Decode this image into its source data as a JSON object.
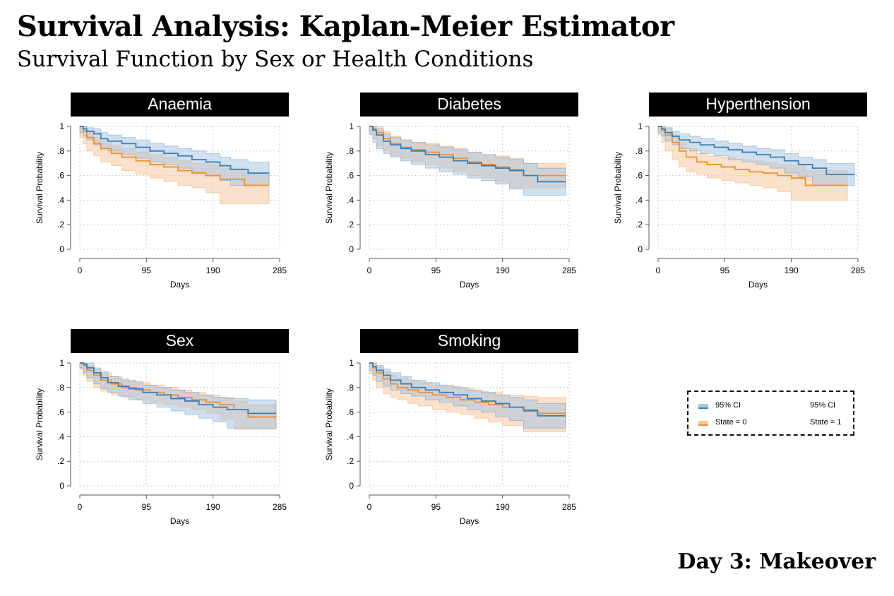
{
  "header": {
    "title": "Survival Analysis: Kaplan-Meier Estimator",
    "subtitle": "Survival Function by Sex or Health Conditions"
  },
  "footer": {
    "label": "Day 3: Makeover"
  },
  "colors": {
    "state0": "#f28e2b",
    "state1": "#3a7fb5",
    "ci_state0": "#f5c9a0",
    "ci_state1": "#a9c7e2",
    "panel_header_bg": "#000000",
    "panel_header_text": "#ffffff"
  },
  "legend": {
    "ci_label_left": "95% CI",
    "ci_label_right": "95% CI",
    "state0_label": "State = 0",
    "state1_label": "State = 1"
  },
  "chart_data": [
    {
      "type": "line",
      "title": "Anaemia",
      "xlabel": "Days",
      "ylabel": "Survival Probability",
      "xlim": [
        0,
        285
      ],
      "ylim": [
        0,
        1
      ],
      "xticks": [
        0,
        95,
        190,
        285
      ],
      "yticks": [
        0,
        0.2,
        0.4,
        0.6,
        0.8,
        1
      ],
      "ytick_labels": [
        "0",
        ".2",
        ".4",
        ".6",
        ".8",
        "1"
      ],
      "grid": true,
      "series": [
        {
          "state": 1,
          "x": [
            0,
            5,
            10,
            20,
            30,
            40,
            60,
            80,
            100,
            120,
            140,
            160,
            180,
            200,
            215,
            240,
            270
          ],
          "y": [
            1,
            0.98,
            0.96,
            0.94,
            0.9,
            0.88,
            0.86,
            0.83,
            0.8,
            0.78,
            0.76,
            0.73,
            0.71,
            0.68,
            0.65,
            0.62,
            0.62
          ],
          "lower": [
            1,
            0.95,
            0.92,
            0.89,
            0.85,
            0.82,
            0.8,
            0.77,
            0.74,
            0.71,
            0.69,
            0.66,
            0.63,
            0.6,
            0.56,
            0.52,
            0.52
          ],
          "upper": [
            1,
            1,
            0.99,
            0.98,
            0.95,
            0.93,
            0.91,
            0.89,
            0.86,
            0.84,
            0.82,
            0.8,
            0.78,
            0.75,
            0.73,
            0.71,
            0.71
          ]
        },
        {
          "state": 0,
          "x": [
            0,
            5,
            10,
            20,
            30,
            45,
            60,
            80,
            100,
            120,
            140,
            160,
            180,
            200,
            235,
            270
          ],
          "y": [
            1,
            0.96,
            0.91,
            0.86,
            0.82,
            0.78,
            0.75,
            0.72,
            0.69,
            0.67,
            0.64,
            0.62,
            0.6,
            0.57,
            0.52,
            0.52
          ],
          "lower": [
            1,
            0.91,
            0.86,
            0.8,
            0.76,
            0.71,
            0.68,
            0.64,
            0.61,
            0.58,
            0.55,
            0.52,
            0.5,
            0.46,
            0.37,
            0.37
          ],
          "upper": [
            1,
            1,
            0.96,
            0.91,
            0.88,
            0.84,
            0.82,
            0.79,
            0.77,
            0.75,
            0.72,
            0.7,
            0.69,
            0.66,
            0.62,
            0.62
          ]
        }
      ]
    },
    {
      "type": "line",
      "title": "Diabetes",
      "xlabel": "Days",
      "ylabel": "Survival Probability",
      "xlim": [
        0,
        285
      ],
      "ylim": [
        0,
        1
      ],
      "xticks": [
        0,
        95,
        190,
        285
      ],
      "yticks": [
        0,
        0.2,
        0.4,
        0.6,
        0.8,
        1
      ],
      "ytick_labels": [
        "0",
        ".2",
        ".4",
        ".6",
        ".8",
        "1"
      ],
      "grid": true,
      "series": [
        {
          "state": 1,
          "x": [
            0,
            5,
            10,
            20,
            30,
            45,
            60,
            80,
            100,
            120,
            140,
            160,
            180,
            200,
            220,
            240,
            280
          ],
          "y": [
            1,
            0.97,
            0.93,
            0.88,
            0.85,
            0.82,
            0.8,
            0.77,
            0.75,
            0.72,
            0.7,
            0.68,
            0.66,
            0.64,
            0.6,
            0.55,
            0.55
          ],
          "lower": [
            1,
            0.93,
            0.87,
            0.82,
            0.78,
            0.75,
            0.72,
            0.69,
            0.66,
            0.63,
            0.61,
            0.58,
            0.56,
            0.53,
            0.49,
            0.44,
            0.44
          ],
          "upper": [
            1,
            1,
            0.98,
            0.94,
            0.91,
            0.89,
            0.87,
            0.85,
            0.83,
            0.81,
            0.79,
            0.77,
            0.75,
            0.73,
            0.7,
            0.66,
            0.66
          ]
        },
        {
          "state": 0,
          "x": [
            0,
            5,
            10,
            20,
            30,
            45,
            60,
            80,
            100,
            120,
            140,
            160,
            180,
            200,
            220,
            280
          ],
          "y": [
            1,
            0.98,
            0.95,
            0.9,
            0.86,
            0.83,
            0.81,
            0.79,
            0.77,
            0.74,
            0.71,
            0.69,
            0.67,
            0.65,
            0.6,
            0.6
          ],
          "lower": [
            1,
            0.95,
            0.9,
            0.84,
            0.8,
            0.76,
            0.74,
            0.71,
            0.69,
            0.66,
            0.63,
            0.6,
            0.58,
            0.55,
            0.5,
            0.5
          ],
          "upper": [
            1,
            1,
            1,
            0.96,
            0.92,
            0.89,
            0.87,
            0.86,
            0.84,
            0.82,
            0.79,
            0.77,
            0.76,
            0.74,
            0.7,
            0.7
          ]
        }
      ]
    },
    {
      "type": "line",
      "title": "Hyperthension",
      "xlabel": "Days",
      "ylabel": "Survival Probability",
      "xlim": [
        0,
        285
      ],
      "ylim": [
        0,
        1
      ],
      "xticks": [
        0,
        95,
        190,
        285
      ],
      "yticks": [
        0,
        0.2,
        0.4,
        0.6,
        0.8,
        1
      ],
      "ytick_labels": [
        "0",
        ".2",
        ".4",
        ".6",
        ".8",
        "1"
      ],
      "grid": true,
      "series": [
        {
          "state": 1,
          "x": [
            0,
            5,
            10,
            20,
            30,
            45,
            60,
            80,
            100,
            120,
            140,
            160,
            180,
            200,
            220,
            240,
            280
          ],
          "y": [
            1,
            0.98,
            0.95,
            0.92,
            0.89,
            0.87,
            0.85,
            0.83,
            0.81,
            0.79,
            0.77,
            0.75,
            0.72,
            0.69,
            0.66,
            0.61,
            0.61
          ],
          "lower": [
            1,
            0.95,
            0.92,
            0.88,
            0.85,
            0.82,
            0.8,
            0.78,
            0.76,
            0.73,
            0.71,
            0.69,
            0.66,
            0.62,
            0.59,
            0.52,
            0.52
          ],
          "upper": [
            1,
            1,
            0.99,
            0.96,
            0.94,
            0.92,
            0.9,
            0.88,
            0.86,
            0.84,
            0.82,
            0.81,
            0.78,
            0.75,
            0.73,
            0.7,
            0.7
          ]
        },
        {
          "state": 0,
          "x": [
            0,
            5,
            10,
            20,
            30,
            40,
            55,
            70,
            90,
            110,
            130,
            150,
            170,
            190,
            210,
            270
          ],
          "y": [
            1,
            0.97,
            0.93,
            0.87,
            0.8,
            0.75,
            0.71,
            0.69,
            0.67,
            0.65,
            0.63,
            0.62,
            0.6,
            0.58,
            0.52,
            0.52
          ],
          "lower": [
            1,
            0.93,
            0.87,
            0.8,
            0.73,
            0.67,
            0.63,
            0.61,
            0.58,
            0.56,
            0.54,
            0.52,
            0.5,
            0.47,
            0.4,
            0.4
          ],
          "upper": [
            1,
            1,
            0.98,
            0.93,
            0.87,
            0.82,
            0.78,
            0.76,
            0.75,
            0.73,
            0.72,
            0.71,
            0.69,
            0.68,
            0.64,
            0.64
          ]
        }
      ]
    },
    {
      "type": "line",
      "title": "Sex",
      "xlabel": "Days",
      "ylabel": "Survival Probability",
      "xlim": [
        0,
        285
      ],
      "ylim": [
        0,
        1
      ],
      "xticks": [
        0,
        95,
        190,
        285
      ],
      "yticks": [
        0,
        0.2,
        0.4,
        0.6,
        0.8,
        1
      ],
      "ytick_labels": [
        "0",
        ".2",
        ".4",
        ".6",
        ".8",
        "1"
      ],
      "grid": true,
      "series": [
        {
          "state": 1,
          "x": [
            0,
            5,
            10,
            20,
            30,
            40,
            55,
            70,
            90,
            110,
            130,
            150,
            170,
            190,
            210,
            240,
            280
          ],
          "y": [
            1,
            0.99,
            0.96,
            0.92,
            0.88,
            0.84,
            0.81,
            0.79,
            0.76,
            0.74,
            0.71,
            0.69,
            0.66,
            0.64,
            0.62,
            0.59,
            0.59
          ],
          "lower": [
            1,
            0.96,
            0.92,
            0.88,
            0.83,
            0.79,
            0.76,
            0.73,
            0.7,
            0.67,
            0.64,
            0.61,
            0.58,
            0.55,
            0.52,
            0.47,
            0.47
          ],
          "upper": [
            1,
            1,
            1,
            0.96,
            0.93,
            0.89,
            0.87,
            0.85,
            0.82,
            0.8,
            0.78,
            0.76,
            0.74,
            0.72,
            0.71,
            0.7,
            0.7
          ]
        },
        {
          "state": 0,
          "x": [
            0,
            5,
            10,
            20,
            30,
            45,
            60,
            80,
            100,
            120,
            140,
            160,
            180,
            200,
            220,
            240,
            280
          ],
          "y": [
            1,
            0.98,
            0.94,
            0.9,
            0.86,
            0.83,
            0.8,
            0.78,
            0.76,
            0.74,
            0.72,
            0.7,
            0.68,
            0.66,
            0.62,
            0.56,
            0.56
          ],
          "lower": [
            1,
            0.95,
            0.9,
            0.85,
            0.8,
            0.77,
            0.74,
            0.72,
            0.7,
            0.68,
            0.66,
            0.64,
            0.62,
            0.59,
            0.54,
            0.46,
            0.46
          ],
          "upper": [
            1,
            1,
            0.98,
            0.95,
            0.92,
            0.89,
            0.86,
            0.84,
            0.82,
            0.8,
            0.78,
            0.76,
            0.74,
            0.72,
            0.69,
            0.66,
            0.66
          ]
        }
      ]
    },
    {
      "type": "line",
      "title": "Smoking",
      "xlabel": "Days",
      "ylabel": "Survival Probability",
      "xlim": [
        0,
        285
      ],
      "ylim": [
        0,
        1
      ],
      "xticks": [
        0,
        95,
        190,
        285
      ],
      "yticks": [
        0,
        0.2,
        0.4,
        0.6,
        0.8,
        1
      ],
      "ytick_labels": [
        "0",
        ".2",
        ".4",
        ".6",
        ".8",
        "1"
      ],
      "grid": true,
      "series": [
        {
          "state": 1,
          "x": [
            0,
            5,
            10,
            20,
            30,
            45,
            60,
            80,
            100,
            120,
            140,
            160,
            180,
            200,
            220,
            240,
            280
          ],
          "y": [
            1,
            0.97,
            0.94,
            0.9,
            0.86,
            0.83,
            0.8,
            0.78,
            0.76,
            0.74,
            0.71,
            0.69,
            0.67,
            0.64,
            0.61,
            0.57,
            0.57
          ],
          "lower": [
            1,
            0.94,
            0.9,
            0.85,
            0.81,
            0.78,
            0.75,
            0.73,
            0.7,
            0.68,
            0.65,
            0.62,
            0.6,
            0.56,
            0.53,
            0.47,
            0.47
          ],
          "upper": [
            1,
            1,
            0.98,
            0.95,
            0.92,
            0.89,
            0.86,
            0.84,
            0.82,
            0.8,
            0.78,
            0.76,
            0.74,
            0.72,
            0.7,
            0.67,
            0.67
          ]
        },
        {
          "state": 0,
          "x": [
            0,
            5,
            10,
            20,
            30,
            40,
            55,
            70,
            90,
            110,
            130,
            150,
            170,
            190,
            220,
            240,
            280
          ],
          "y": [
            1,
            0.96,
            0.92,
            0.87,
            0.83,
            0.8,
            0.78,
            0.76,
            0.74,
            0.72,
            0.7,
            0.68,
            0.66,
            0.64,
            0.62,
            0.59,
            0.59
          ],
          "lower": [
            1,
            0.91,
            0.86,
            0.8,
            0.75,
            0.72,
            0.7,
            0.67,
            0.65,
            0.62,
            0.6,
            0.58,
            0.55,
            0.52,
            0.49,
            0.44,
            0.44
          ],
          "upper": [
            1,
            1,
            0.97,
            0.93,
            0.9,
            0.88,
            0.86,
            0.84,
            0.82,
            0.81,
            0.79,
            0.77,
            0.76,
            0.74,
            0.73,
            0.72,
            0.72
          ]
        }
      ]
    }
  ]
}
